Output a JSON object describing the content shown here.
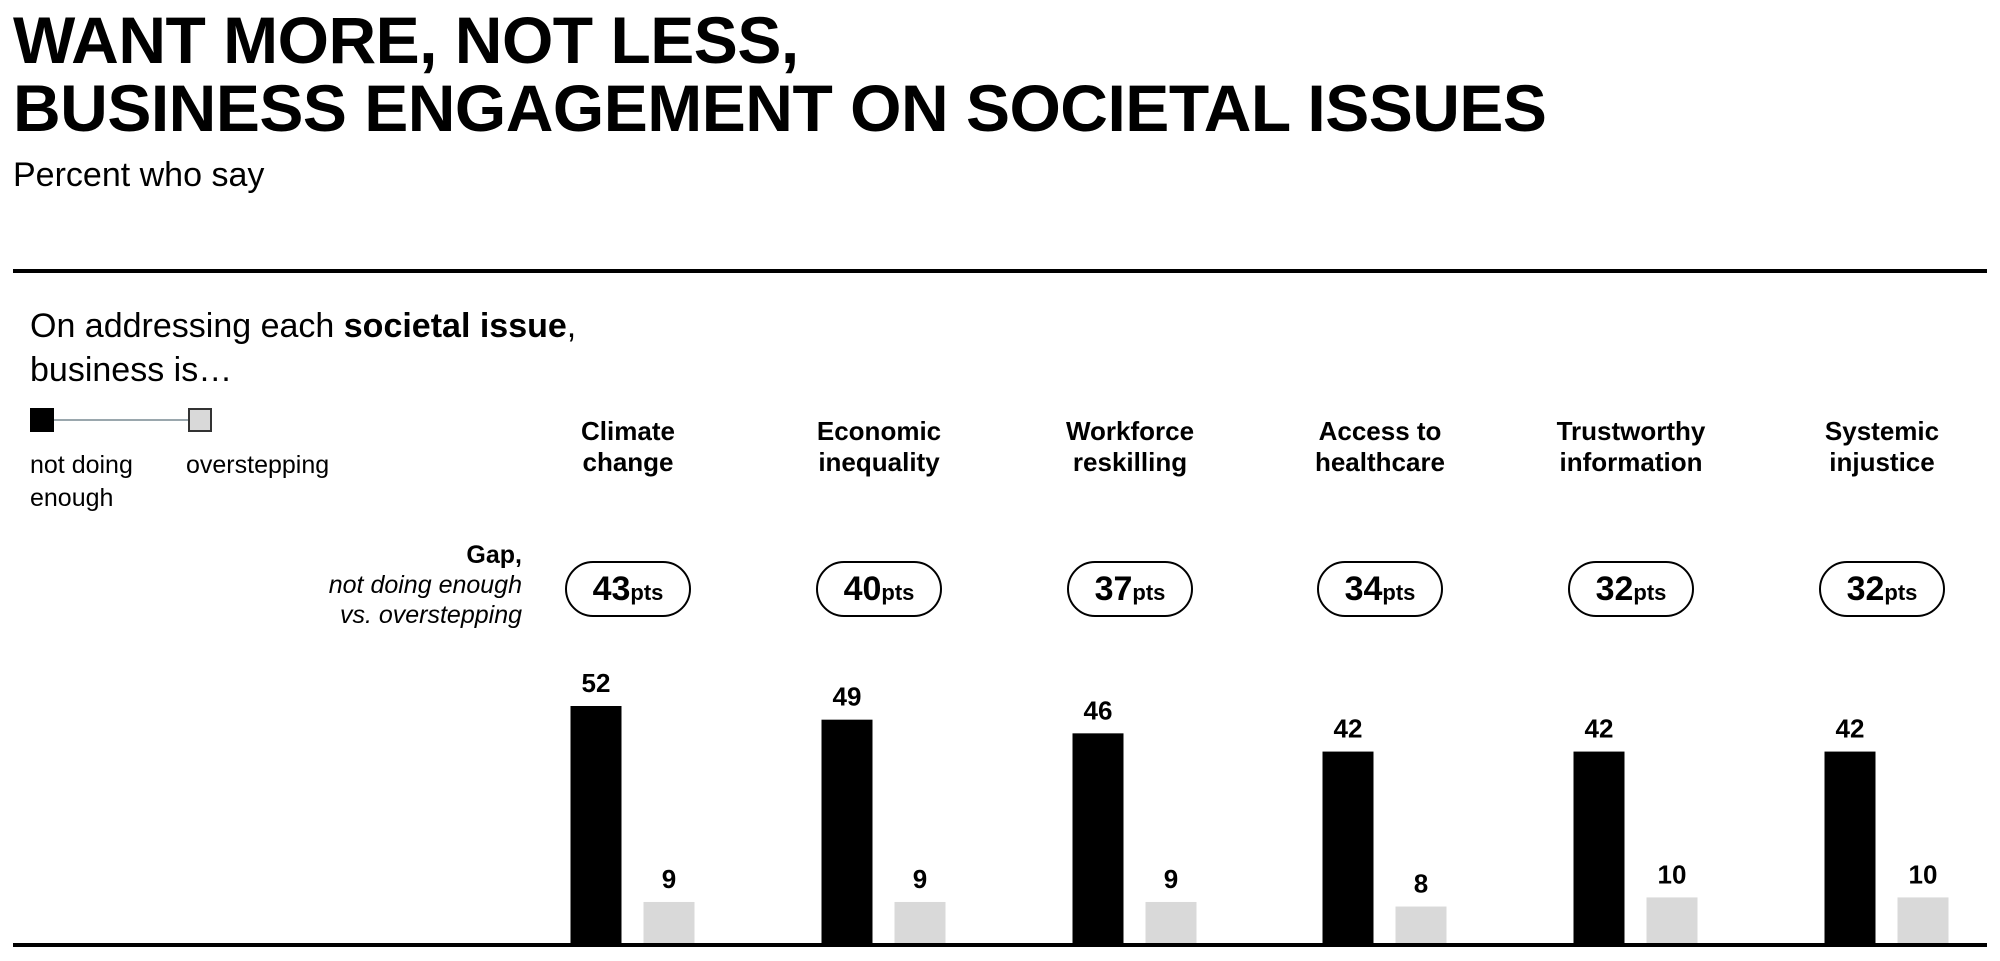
{
  "title_line1": "WANT MORE, NOT LESS,",
  "title_line2": "BUSINESS ENGAGEMENT ON SOCIETAL ISSUES",
  "subtitle": "Percent who say",
  "intro": {
    "prefix": "On addressing each ",
    "bold": "societal issue",
    "suffix": ",",
    "line2": "business is…"
  },
  "legend": {
    "not_doing_line1": "not doing",
    "not_doing_line2": "enough",
    "overstepping": "overstepping"
  },
  "gap_label": {
    "main": "Gap,",
    "sub1": "not doing enough",
    "sub2": "vs. overstepping"
  },
  "gap_unit": "pts",
  "colors": {
    "not_doing_enough": "#000000",
    "overstepping": "#d9d9d9"
  },
  "chart_data": {
    "type": "bar",
    "categories": [
      "Climate change",
      "Economic inequality",
      "Workforce reskilling",
      "Access to healthcare",
      "Trustworthy information",
      "Systemic injustice"
    ],
    "category_lines": [
      [
        "Climate",
        "change"
      ],
      [
        "Economic",
        "inequality"
      ],
      [
        "Workforce",
        "reskilling"
      ],
      [
        "Access to",
        "healthcare"
      ],
      [
        "Trustworthy",
        "information"
      ],
      [
        "Systemic",
        "injustice"
      ]
    ],
    "series": [
      {
        "name": "not doing enough",
        "values": [
          52,
          49,
          46,
          42,
          42,
          42
        ]
      },
      {
        "name": "overstepping",
        "values": [
          9,
          9,
          9,
          8,
          10,
          10
        ]
      }
    ],
    "gaps": [
      43,
      40,
      37,
      34,
      32,
      32
    ],
    "ylim": [
      0,
      52
    ],
    "grid": false,
    "legend_position": "top-left"
  }
}
